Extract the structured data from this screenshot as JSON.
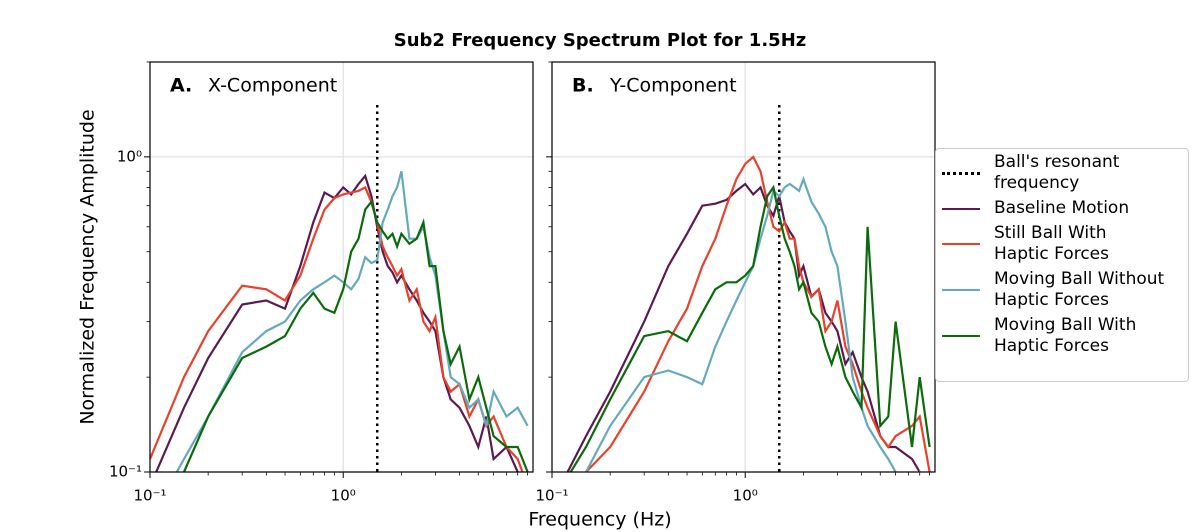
{
  "title": "Sub2 Frequency Spectrum Plot for 1.5Hz",
  "x_label": "Frequency (Hz)",
  "y_label": "Normalized Frequency Amplitude",
  "chart_data": [
    {
      "type": "line",
      "panel_letter": "A.",
      "panel_title": "X-Component",
      "log_x": true,
      "log_y": true,
      "grid": true,
      "minor_ticks": true,
      "legend": "right",
      "xlim": [
        0.1,
        9.6
      ],
      "ylim": [
        0.1,
        2.0
      ],
      "xticks": [
        {
          "value": 0.1,
          "label": "10⁻¹"
        },
        {
          "value": 1,
          "label": "10⁰"
        }
      ],
      "yticks": [
        {
          "value": 0.1,
          "label": "10⁻¹"
        },
        {
          "value": 1,
          "label": "10⁰"
        }
      ],
      "vline": {
        "name": "Ball's resonant\nfrequency",
        "x": 1.5,
        "color": "#000000"
      },
      "x": [
        0.1,
        0.15,
        0.2,
        0.3,
        0.4,
        0.5,
        0.6,
        0.7,
        0.8,
        0.9,
        1.0,
        1.1,
        1.2,
        1.3,
        1.4,
        1.5,
        1.6,
        1.7,
        1.8,
        1.9,
        2.0,
        2.2,
        2.4,
        2.6,
        2.8,
        3.0,
        3.3,
        3.6,
        4.0,
        4.5,
        5.0,
        5.5,
        6.0,
        7.0,
        8.0,
        9.0
      ],
      "series": [
        {
          "name": "Baseline Motion",
          "color": "#5c1a4e",
          "values": [
            0.09,
            0.16,
            0.23,
            0.34,
            0.35,
            0.33,
            0.45,
            0.62,
            0.77,
            0.74,
            0.8,
            0.76,
            0.82,
            0.87,
            0.75,
            0.6,
            0.5,
            0.45,
            0.43,
            0.4,
            0.42,
            0.38,
            0.35,
            0.32,
            0.3,
            0.28,
            0.2,
            0.17,
            0.16,
            0.14,
            0.12,
            0.15,
            0.11,
            0.12,
            0.1,
            0.085
          ]
        },
        {
          "name": "Still Ball With\nHaptic Forces",
          "color": "#e8412c",
          "values": [
            0.11,
            0.2,
            0.28,
            0.39,
            0.38,
            0.35,
            0.42,
            0.55,
            0.68,
            0.74,
            0.76,
            0.77,
            0.78,
            0.8,
            0.72,
            0.62,
            0.52,
            0.48,
            0.45,
            0.42,
            0.44,
            0.35,
            0.38,
            0.3,
            0.28,
            0.31,
            0.2,
            0.18,
            0.19,
            0.15,
            0.17,
            0.14,
            0.15,
            0.12,
            0.11,
            0.09
          ]
        },
        {
          "name": "Moving Ball Without\nHaptic Forces",
          "color": "#64aabc",
          "values": [
            0.07,
            0.11,
            0.15,
            0.24,
            0.28,
            0.3,
            0.35,
            0.38,
            0.4,
            0.42,
            0.4,
            0.38,
            0.41,
            0.48,
            0.46,
            0.47,
            0.62,
            0.68,
            0.75,
            0.8,
            0.9,
            0.55,
            0.55,
            0.6,
            0.48,
            0.42,
            0.28,
            0.2,
            0.19,
            0.16,
            0.17,
            0.14,
            0.18,
            0.15,
            0.16,
            0.14
          ]
        },
        {
          "name": "Moving Ball With\nHaptic Forces",
          "color": "#0b6b0b",
          "values": [
            0.06,
            0.1,
            0.15,
            0.23,
            0.25,
            0.27,
            0.33,
            0.37,
            0.33,
            0.32,
            0.38,
            0.5,
            0.55,
            0.68,
            0.72,
            0.62,
            0.58,
            0.55,
            0.57,
            0.52,
            0.57,
            0.53,
            0.55,
            0.62,
            0.45,
            0.45,
            0.28,
            0.22,
            0.25,
            0.17,
            0.2,
            0.16,
            0.13,
            0.12,
            0.12,
            0.1
          ]
        }
      ]
    },
    {
      "type": "line",
      "panel_letter": "B.",
      "panel_title": "Y-Component",
      "log_x": true,
      "log_y": true,
      "grid": true,
      "minor_ticks": true,
      "xlim": [
        0.1,
        9.6
      ],
      "ylim": [
        0.1,
        2.0
      ],
      "xticks": [
        {
          "value": 0.1,
          "label": "10⁻¹"
        },
        {
          "value": 1,
          "label": "10⁰"
        }
      ],
      "yticks": [
        0.1,
        1
      ],
      "vline": {
        "x": 1.5,
        "color": "#000000"
      },
      "x": [
        0.1,
        0.15,
        0.2,
        0.3,
        0.4,
        0.5,
        0.6,
        0.7,
        0.8,
        0.9,
        1.0,
        1.1,
        1.2,
        1.3,
        1.4,
        1.5,
        1.6,
        1.7,
        1.8,
        1.9,
        2.0,
        2.2,
        2.4,
        2.6,
        2.8,
        3.0,
        3.3,
        3.6,
        4.0,
        4.3,
        5.0,
        5.5,
        6.0,
        7.3,
        8.0,
        9.0
      ],
      "series": [
        {
          "color": "#5c1a4e",
          "values": [
            0.08,
            0.13,
            0.18,
            0.3,
            0.45,
            0.57,
            0.7,
            0.71,
            0.73,
            0.78,
            0.82,
            0.76,
            0.8,
            0.7,
            0.65,
            0.75,
            0.62,
            0.58,
            0.55,
            0.42,
            0.45,
            0.36,
            0.38,
            0.32,
            0.3,
            0.28,
            0.22,
            0.24,
            0.2,
            0.18,
            0.13,
            0.12,
            0.12,
            0.11,
            0.1,
            0.09
          ]
        },
        {
          "color": "#e8412c",
          "values": [
            0.08,
            0.1,
            0.12,
            0.18,
            0.26,
            0.33,
            0.45,
            0.55,
            0.7,
            0.85,
            0.95,
            1.0,
            0.9,
            0.72,
            0.6,
            0.58,
            0.62,
            0.55,
            0.55,
            0.45,
            0.4,
            0.36,
            0.38,
            0.28,
            0.3,
            0.35,
            0.25,
            0.22,
            0.18,
            0.16,
            0.13,
            0.12,
            0.13,
            0.14,
            0.15,
            0.1
          ]
        },
        {
          "color": "#64aabc",
          "values": [
            0.07,
            0.1,
            0.14,
            0.2,
            0.21,
            0.2,
            0.19,
            0.25,
            0.3,
            0.35,
            0.4,
            0.45,
            0.55,
            0.65,
            0.78,
            0.75,
            0.8,
            0.82,
            0.8,
            0.78,
            0.85,
            0.72,
            0.66,
            0.6,
            0.5,
            0.45,
            0.3,
            0.2,
            0.16,
            0.14,
            0.12,
            0.11,
            0.1,
            0.09,
            0.1,
            0.09
          ]
        },
        {
          "color": "#0b6b0b",
          "values": [
            0.08,
            0.12,
            0.17,
            0.27,
            0.28,
            0.26,
            0.32,
            0.38,
            0.4,
            0.4,
            0.42,
            0.45,
            0.6,
            0.75,
            0.8,
            0.65,
            0.55,
            0.5,
            0.45,
            0.38,
            0.4,
            0.32,
            0.3,
            0.25,
            0.22,
            0.25,
            0.2,
            0.18,
            0.16,
            0.6,
            0.14,
            0.15,
            0.3,
            0.12,
            0.2,
            0.12
          ]
        }
      ]
    }
  ]
}
